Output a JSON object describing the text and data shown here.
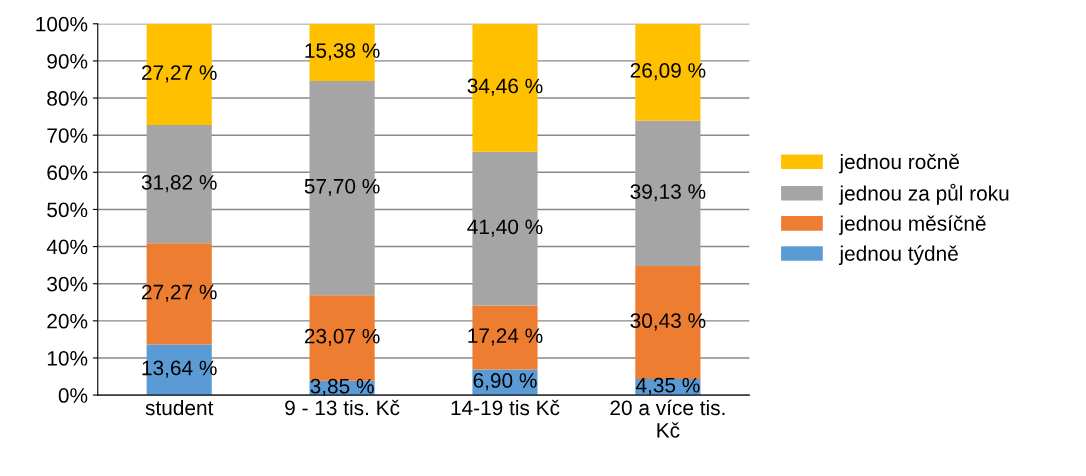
{
  "chart_data": {
    "type": "bar",
    "stacked": true,
    "categories": [
      "student",
      "9 - 13 tis. Kč",
      "14-19 tis Kč",
      "20 a více tis. Kč"
    ],
    "series": [
      {
        "name": "jednou týdně",
        "color": "#5b9bd5",
        "values": [
          13.64,
          3.85,
          6.9,
          4.35
        ],
        "value_labels": [
          "13,64 %",
          "3,85 %",
          "6,90 %",
          "4,35 %"
        ]
      },
      {
        "name": "jednou měsíčně",
        "color": "#ed7d31",
        "values": [
          27.27,
          23.07,
          17.24,
          30.43
        ],
        "value_labels": [
          "27,27 %",
          "23,07 %",
          "17,24 %",
          "30,43 %"
        ]
      },
      {
        "name": "jednou za půl roku",
        "color": "#a5a5a5",
        "values": [
          31.82,
          57.7,
          41.4,
          39.13
        ],
        "value_labels": [
          "31,82 %",
          "57,70 %",
          "41,40 %",
          "39,13 %"
        ]
      },
      {
        "name": "jednou ročně",
        "color": "#ffc000",
        "values": [
          27.27,
          15.38,
          34.46,
          26.09
        ],
        "value_labels": [
          "27,27 %",
          "15,38 %",
          "34,46 %",
          "26,09 %"
        ]
      }
    ],
    "ylim": [
      0,
      100
    ],
    "yticks": [
      {
        "value": 0,
        "label": "0%"
      },
      {
        "value": 10,
        "label": "10%"
      },
      {
        "value": 20,
        "label": "20%"
      },
      {
        "value": 30,
        "label": "30%"
      },
      {
        "value": 40,
        "label": "40%"
      },
      {
        "value": 50,
        "label": "50%"
      },
      {
        "value": 60,
        "label": "60%"
      },
      {
        "value": 70,
        "label": "70%"
      },
      {
        "value": 80,
        "label": "80%"
      },
      {
        "value": 90,
        "label": "90%"
      },
      {
        "value": 100,
        "label": "100%"
      }
    ],
    "grid": "y",
    "legend": "right"
  }
}
